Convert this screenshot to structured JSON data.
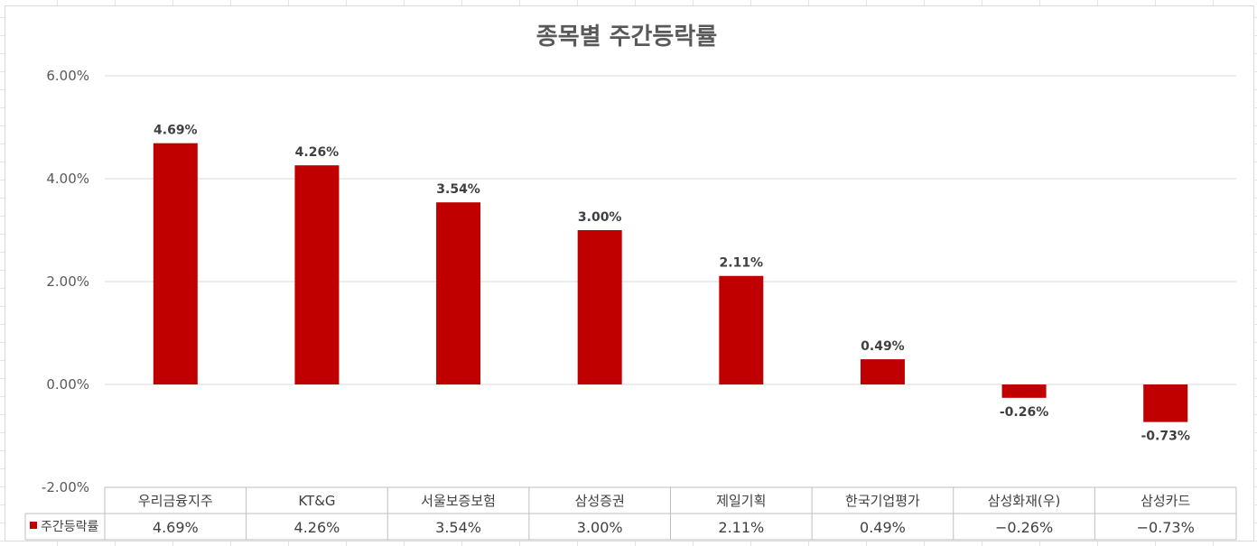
{
  "chart_data": {
    "type": "bar",
    "title": "종목별 주간등락률",
    "categories": [
      "우리금융지주",
      "KT&G",
      "서울보증보험",
      "삼성증권",
      "제일기획",
      "한국기업평가",
      "삼성화재(우)",
      "삼성카드"
    ],
    "series": [
      {
        "name": "주간등락률",
        "color": "#c00000",
        "values": [
          4.69,
          4.26,
          3.54,
          3.0,
          2.11,
          0.49,
          -0.26,
          -0.73
        ],
        "labels": [
          "4.69%",
          "4.26%",
          "3.54%",
          "3.00%",
          "2.11%",
          "0.49%",
          "-0.26%",
          "-0.73%"
        ],
        "table_values": [
          "4.69%",
          "4.26%",
          "3.54%",
          "3.00%",
          "2.11%",
          "0.49%",
          "−0.26%",
          "−0.73%"
        ]
      }
    ],
    "ylim": [
      -2,
      6
    ],
    "yticks": [
      6,
      4,
      2,
      0,
      -2
    ],
    "ytick_labels": [
      "6.00%",
      "4.00%",
      "2.00%",
      "0.00%",
      "-2.00%"
    ],
    "xlabel": "",
    "ylabel": "",
    "grid": true,
    "legend": "data-table",
    "data_table": true
  }
}
